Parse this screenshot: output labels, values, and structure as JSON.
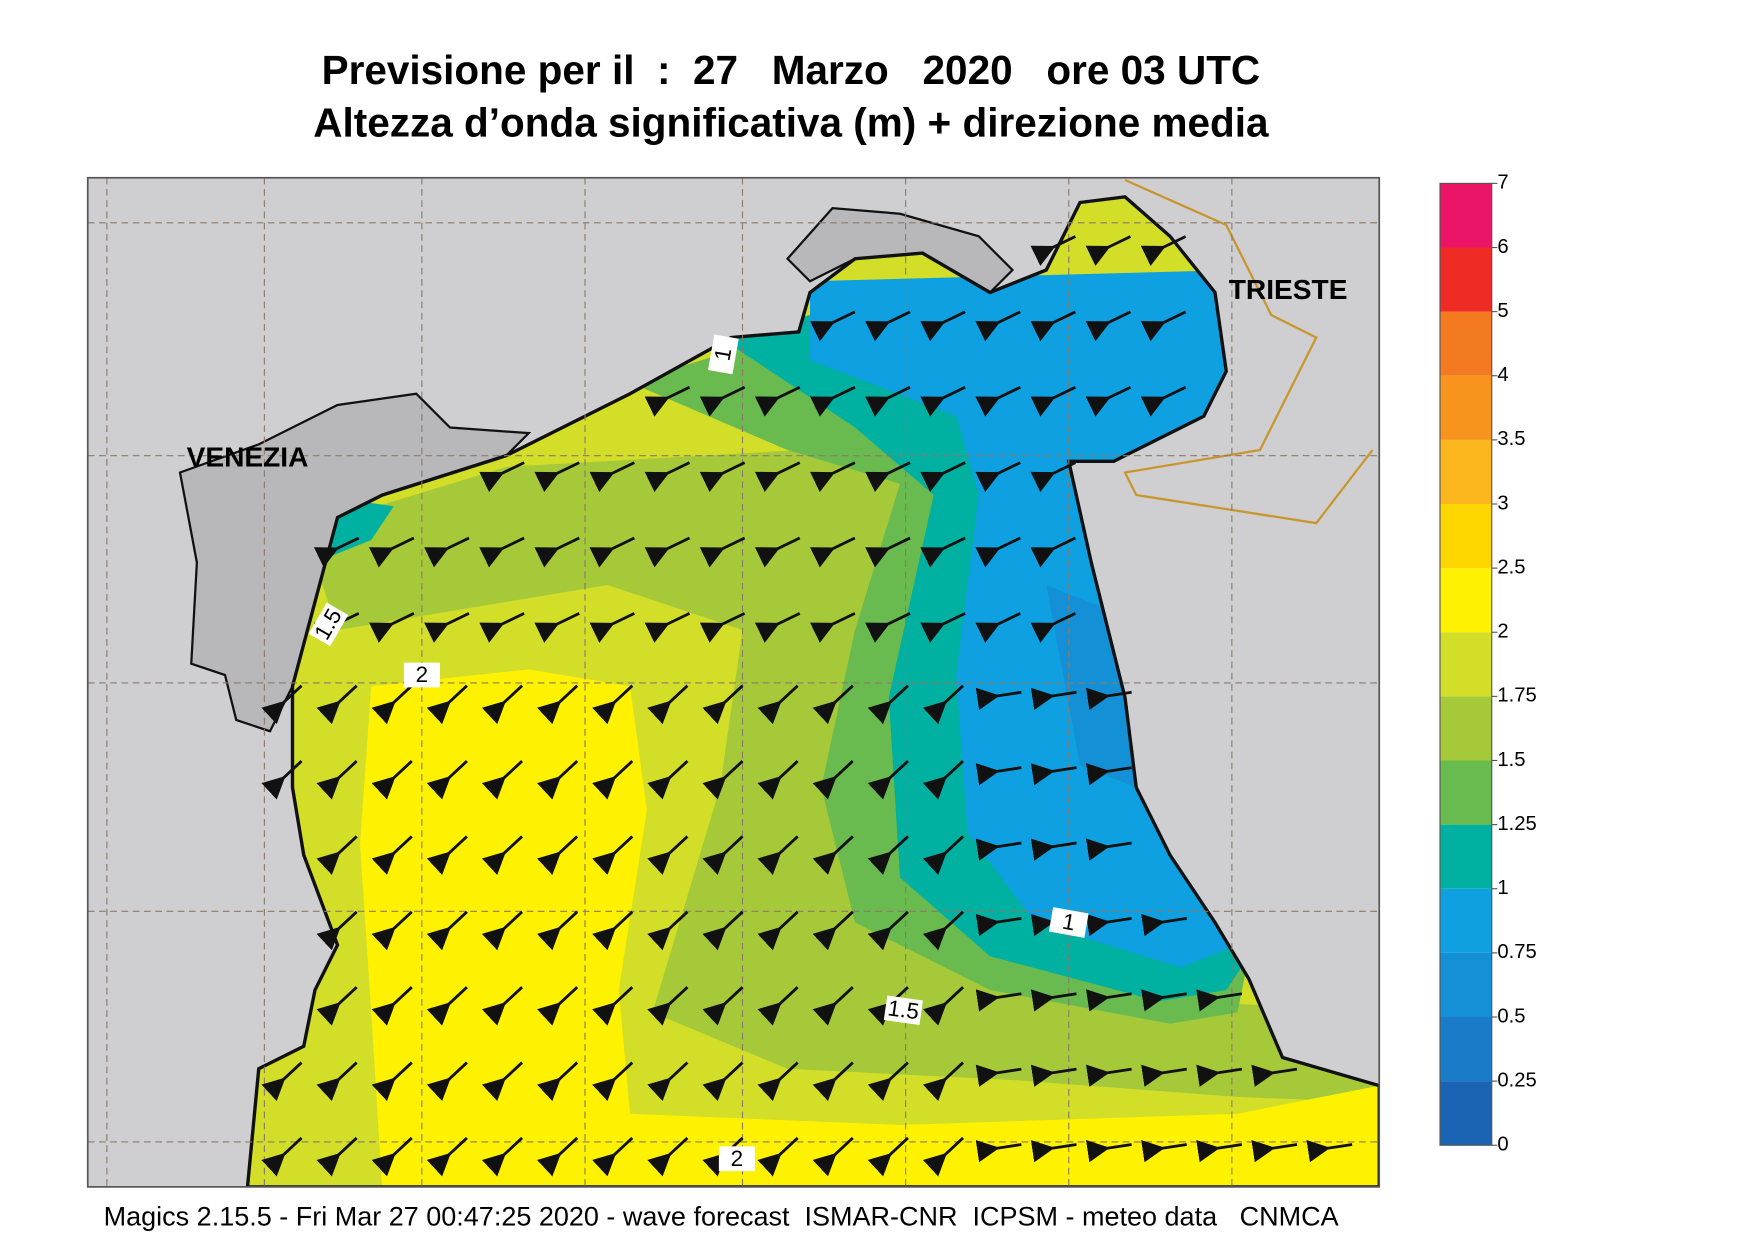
{
  "title": [
    "Previsione per il  :  27   Marzo   2020   ore 03 UTC",
    "Altezza d’onda significativa (m) + direzione media"
  ],
  "map": {
    "place_labels": [
      "VENEZIA",
      "TRIESTE"
    ],
    "contour_labels": [
      1,
      1.5,
      2,
      1,
      1.5,
      2
    ]
  },
  "colorbar": {
    "levels": [
      0,
      0.25,
      0.5,
      0.75,
      1,
      1.25,
      1.5,
      1.75,
      2,
      2.5,
      3,
      3.5,
      4,
      5,
      6,
      7
    ],
    "colors": [
      "#1b64b4",
      "#1a7cc8",
      "#1490d6",
      "#0ea0e0",
      "#00b0a0",
      "#6abb4f",
      "#a6c93a",
      "#d2de28",
      "#fff200",
      "#fed700",
      "#fbb61d",
      "#f7941d",
      "#f47a22",
      "#ee2a24",
      "#ec1467"
    ]
  },
  "footer": "Magics 2.15.5 - Fri Mar 27 00:47:25 2020 - wave forecast  ISMAR-CNR  ICPSM - meteo data   CNMCA"
}
